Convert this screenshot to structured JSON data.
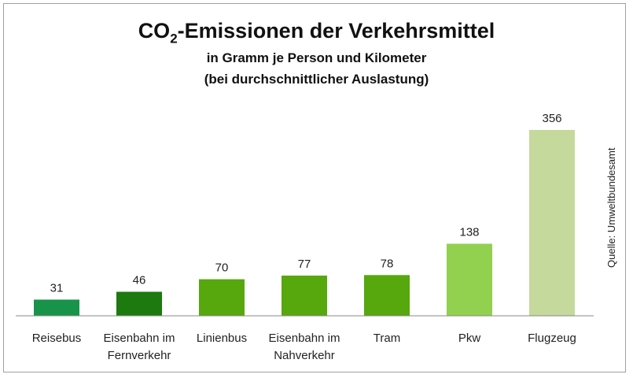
{
  "chart_data": {
    "type": "bar",
    "title_prefix": "CO",
    "title_subscript": "2",
    "title_suffix": "-Emissionen der Verkehrsmittel",
    "subtitle_line1": "in Gramm je Person und Kilometer",
    "subtitle_line2": "(bei durchschnittlicher Auslastung)",
    "source": "Quelle: Umweltbundesamt",
    "categories": [
      [
        "Reisebus"
      ],
      [
        "Eisenbahn im",
        "Fernverkehr"
      ],
      [
        "Linienbus"
      ],
      [
        "Eisenbahn im",
        "Nahverkehr"
      ],
      [
        "Tram"
      ],
      [
        "Pkw"
      ],
      [
        "Flugzeug"
      ]
    ],
    "values": [
      31,
      46,
      70,
      77,
      78,
      138,
      356
    ],
    "colors": [
      "#17934a",
      "#1c7a0e",
      "#56a80c",
      "#56a80c",
      "#56a80c",
      "#92d050",
      "#c4d99b"
    ],
    "xlabel": "",
    "ylabel": "",
    "ylim": [
      0,
      356
    ],
    "grid": false,
    "legend": "none"
  }
}
